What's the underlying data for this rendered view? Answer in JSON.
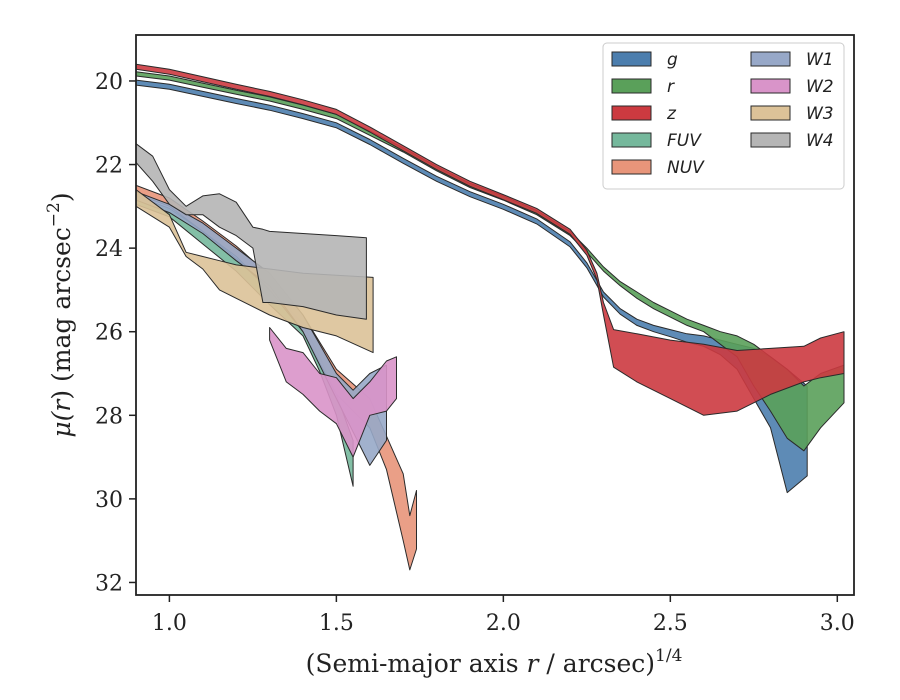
{
  "chart_data": {
    "type": "area",
    "xlabel": "(Semi-major axis r / arcsec)",
    "xlabel_prefix": "(Semi-major axis ",
    "xlabel_r": "r",
    "xlabel_suffix": " / arcsec)",
    "xlabel_exp": "1/4",
    "ylabel": "μ(r) (mag arcsec",
    "ylabel_mu": "μ(",
    "ylabel_r": "r",
    "ylabel_rest": ") (mag arcsec",
    "ylabel_exp": "−2",
    "ylabel_close": ")",
    "xlim": [
      0.9,
      3.05
    ],
    "ylim": [
      32.3,
      18.9
    ],
    "y_inverted": true,
    "xticks": [
      1.0,
      1.5,
      2.0,
      2.5,
      3.0
    ],
    "xtick_labels": [
      "1.0",
      "1.5",
      "2.0",
      "2.5",
      "3.0"
    ],
    "yticks": [
      20,
      22,
      24,
      26,
      28,
      30,
      32
    ],
    "ytick_labels": [
      "20",
      "22",
      "24",
      "26",
      "28",
      "30",
      "32"
    ],
    "grid": false,
    "legend_position": "top-right",
    "legend_columns": 2,
    "series": [
      {
        "name": "g",
        "color": "#4c7eae",
        "x": [
          0.9,
          1.0,
          1.1,
          1.2,
          1.3,
          1.4,
          1.5,
          1.6,
          1.7,
          1.8,
          1.9,
          2.0,
          2.1,
          2.2,
          2.25,
          2.3,
          2.35,
          2.4,
          2.45,
          2.5,
          2.55,
          2.6,
          2.65,
          2.7,
          2.75,
          2.8,
          2.85,
          2.91
        ],
        "y_upper": [
          19.98,
          20.08,
          20.25,
          20.42,
          20.58,
          20.78,
          21.0,
          21.4,
          21.85,
          22.28,
          22.65,
          22.95,
          23.3,
          23.85,
          24.35,
          25.05,
          25.45,
          25.7,
          25.85,
          25.95,
          26.05,
          26.1,
          26.2,
          26.3,
          26.4,
          26.6,
          26.9,
          27.3
        ],
        "y_lower": [
          20.1,
          20.2,
          20.37,
          20.54,
          20.7,
          20.9,
          21.12,
          21.52,
          21.97,
          22.4,
          22.77,
          23.07,
          23.42,
          23.97,
          24.47,
          25.17,
          25.58,
          25.85,
          26.0,
          26.12,
          26.25,
          26.35,
          26.55,
          26.9,
          27.6,
          28.3,
          29.85,
          29.45
        ]
      },
      {
        "name": "r",
        "color": "#5aa05a",
        "x": [
          0.9,
          1.0,
          1.1,
          1.2,
          1.3,
          1.4,
          1.5,
          1.6,
          1.7,
          1.8,
          1.9,
          2.0,
          2.1,
          2.2,
          2.25,
          2.3,
          2.35,
          2.4,
          2.45,
          2.5,
          2.55,
          2.6,
          2.65,
          2.7,
          2.75,
          2.8,
          2.85,
          2.9,
          2.95,
          3.02
        ],
        "y_upper": [
          19.78,
          19.88,
          20.05,
          20.22,
          20.38,
          20.58,
          20.8,
          21.2,
          21.6,
          22.05,
          22.45,
          22.75,
          23.1,
          23.6,
          24.0,
          24.45,
          24.8,
          25.05,
          25.3,
          25.5,
          25.7,
          25.85,
          26.0,
          26.1,
          26.3,
          26.6,
          26.9,
          27.3,
          27.0,
          26.8
        ],
        "y_lower": [
          19.88,
          19.98,
          20.15,
          20.32,
          20.48,
          20.68,
          20.9,
          21.3,
          21.7,
          22.15,
          22.55,
          22.85,
          23.2,
          23.7,
          24.1,
          24.55,
          24.9,
          25.2,
          25.45,
          25.65,
          25.85,
          26.0,
          26.3,
          26.6,
          27.3,
          27.9,
          28.55,
          28.85,
          28.3,
          27.7
        ]
      },
      {
        "name": "z",
        "color": "#cc3a40",
        "x": [
          0.9,
          1.0,
          1.1,
          1.2,
          1.3,
          1.4,
          1.5,
          1.6,
          1.7,
          1.8,
          1.9,
          2.0,
          2.1,
          2.2,
          2.25,
          2.28,
          2.3,
          2.33,
          2.4,
          2.5,
          2.6,
          2.7,
          2.8,
          2.9,
          2.95,
          3.02
        ],
        "y_upper": [
          19.6,
          19.72,
          19.9,
          20.08,
          20.25,
          20.45,
          20.68,
          21.1,
          21.55,
          22.0,
          22.4,
          22.72,
          23.05,
          23.55,
          24.05,
          24.6,
          25.3,
          25.95,
          26.05,
          26.2,
          26.3,
          26.45,
          26.4,
          26.35,
          26.15,
          26.0
        ],
        "y_lower": [
          19.72,
          19.84,
          20.02,
          20.2,
          20.37,
          20.57,
          20.8,
          21.22,
          21.67,
          22.12,
          22.52,
          22.84,
          23.17,
          23.67,
          24.17,
          24.75,
          25.6,
          26.85,
          27.2,
          27.6,
          28.0,
          27.9,
          27.5,
          27.2,
          27.1,
          27.0
        ]
      },
      {
        "name": "FUV",
        "color": "#75b89c",
        "x": [
          0.9,
          1.0,
          1.1,
          1.2,
          1.3,
          1.4,
          1.45,
          1.5,
          1.55
        ],
        "y_upper": [
          22.75,
          23.05,
          23.6,
          24.25,
          25.0,
          25.8,
          26.6,
          27.5,
          28.6
        ],
        "y_lower": [
          22.95,
          23.25,
          23.9,
          24.55,
          25.35,
          26.1,
          26.95,
          28.0,
          29.7
        ]
      },
      {
        "name": "NUV",
        "color": "#e8957a",
        "x": [
          0.9,
          1.0,
          1.1,
          1.2,
          1.3,
          1.4,
          1.5,
          1.6,
          1.65,
          1.7,
          1.72,
          1.74
        ],
        "y_upper": [
          22.5,
          22.8,
          23.35,
          23.95,
          24.65,
          25.6,
          26.9,
          27.6,
          28.5,
          29.4,
          30.4,
          29.8
        ],
        "y_lower": [
          22.7,
          23.0,
          23.6,
          24.2,
          25.0,
          26.0,
          27.5,
          28.3,
          29.3,
          31.0,
          31.7,
          31.2
        ]
      },
      {
        "name": "W1",
        "color": "#97a8c8",
        "x": [
          0.9,
          1.0,
          1.1,
          1.2,
          1.3,
          1.4,
          1.5,
          1.55,
          1.6,
          1.65
        ],
        "y_upper": [
          22.65,
          22.95,
          23.4,
          24.0,
          24.6,
          25.6,
          27.0,
          27.4,
          27.0,
          26.8
        ],
        "y_lower": [
          22.85,
          23.15,
          23.65,
          24.3,
          24.9,
          26.0,
          27.6,
          28.4,
          29.2,
          28.6
        ]
      },
      {
        "name": "W2",
        "color": "#d994c9",
        "x": [
          1.3,
          1.35,
          1.4,
          1.45,
          1.5,
          1.55,
          1.6,
          1.65,
          1.68
        ],
        "y_upper": [
          25.9,
          26.4,
          26.5,
          27.0,
          27.1,
          27.6,
          27.2,
          26.7,
          26.6
        ],
        "y_lower": [
          26.2,
          27.2,
          27.5,
          27.9,
          28.2,
          29.0,
          28.0,
          27.9,
          27.6
        ]
      },
      {
        "name": "W3",
        "color": "#dcc298",
        "x": [
          0.9,
          1.0,
          1.05,
          1.1,
          1.15,
          1.2,
          1.3,
          1.4,
          1.5,
          1.61
        ],
        "y_upper": [
          22.6,
          23.2,
          24.1,
          24.2,
          24.3,
          24.4,
          24.5,
          24.6,
          24.65,
          24.7
        ],
        "y_lower": [
          23.0,
          23.5,
          24.2,
          24.5,
          25.0,
          25.2,
          25.6,
          25.9,
          26.1,
          26.5
        ]
      },
      {
        "name": "W4",
        "color": "#b5b5b5",
        "x": [
          0.9,
          0.95,
          1.0,
          1.05,
          1.1,
          1.15,
          1.2,
          1.25,
          1.28,
          1.3,
          1.4,
          1.5,
          1.59
        ],
        "y_upper": [
          21.5,
          21.8,
          22.6,
          23.0,
          22.75,
          22.7,
          22.9,
          23.5,
          23.55,
          23.6,
          23.65,
          23.7,
          23.75
        ],
        "y_lower": [
          21.95,
          22.4,
          22.95,
          23.2,
          23.2,
          23.5,
          23.7,
          24.0,
          25.3,
          25.3,
          25.4,
          25.6,
          25.7
        ]
      }
    ]
  }
}
